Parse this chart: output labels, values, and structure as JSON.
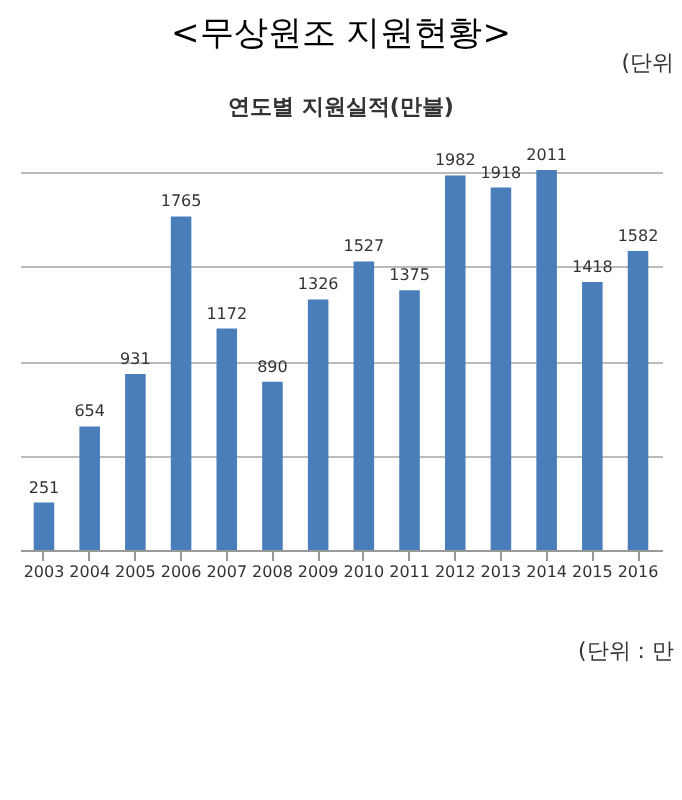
{
  "chart_data": {
    "type": "bar",
    "title": "<무상원조 지원현황>",
    "subtitle": "연도별 지원실적(만불)",
    "annotations": [
      "(단위",
      "(단위 : 만"
    ],
    "categories": [
      "2003",
      "2004",
      "2005",
      "2006",
      "2007",
      "2008",
      "2009",
      "2010",
      "2011",
      "2012",
      "2013",
      "2014",
      "2015",
      "2016"
    ],
    "values": [
      251,
      654,
      931,
      1765,
      1172,
      890,
      1326,
      1527,
      1375,
      1982,
      1918,
      2011,
      1418,
      1582
    ],
    "color": "#4a7ebb",
    "yticks": [
      {
        "value": 0,
        "label": null
      },
      {
        "value": 500,
        "label": null
      },
      {
        "value": 1000,
        "label": null
      },
      {
        "value": 1500,
        "label": null
      },
      {
        "value": 2000,
        "label": null
      }
    ],
    "grid": "y",
    "tick_labels": "x",
    "data_labels": true
  }
}
